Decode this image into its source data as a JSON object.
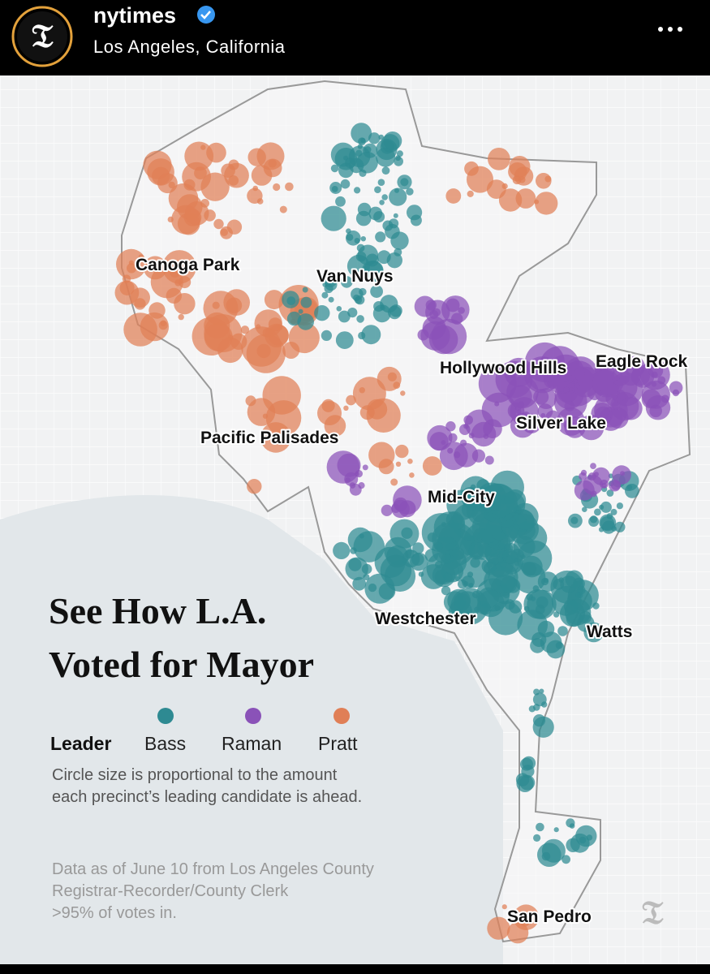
{
  "header": {
    "username": "nytimes",
    "location": "Los Angeles, California"
  },
  "map": {
    "title": [
      "See How L.A.",
      "Voted for Mayor"
    ],
    "legend": {
      "label": "Leader",
      "items": [
        {
          "name": "Bass",
          "color": "#2e8a92"
        },
        {
          "name": "Raman",
          "color": "#8a52b8"
        },
        {
          "name": "Pratt",
          "color": "#e07f56"
        }
      ]
    },
    "note": [
      "Circle size is proportional to the amount",
      "each precinct’s leading candidate is ahead."
    ],
    "source": [
      "Data as of June 10 from Los Angeles County",
      "Registrar-Recorder/County Clerk",
      ">95% of votes in."
    ],
    "places": [
      "Canoga Park",
      "Van Nuys",
      "Hollywood Hills",
      "Eagle Rock",
      "Silver Lake",
      "Pacific Palisades",
      "Mid-City",
      "Westchester",
      "Watts",
      "San Pedro"
    ]
  }
}
